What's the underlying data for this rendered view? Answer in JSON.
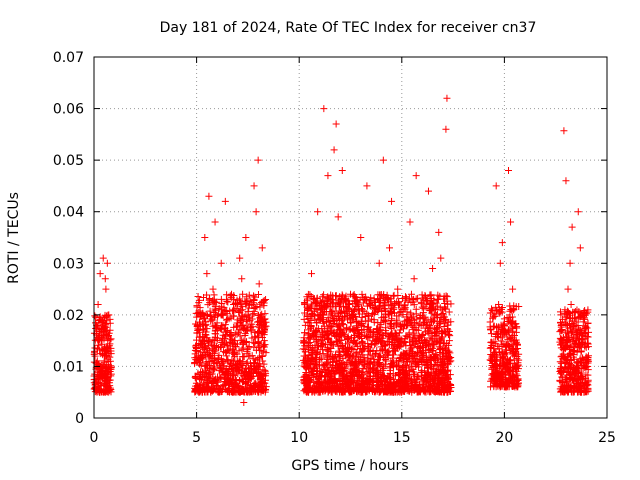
{
  "chart_data": {
    "type": "scatter",
    "title": "Day 181 of 2024, Rate Of TEC Index for receiver cn37",
    "xlabel": "GPS time / hours",
    "ylabel": "ROTI / TECUs",
    "xlim": [
      0,
      25
    ],
    "ylim": [
      0,
      0.07
    ],
    "xticks": [
      "0",
      "5",
      "10",
      "15",
      "20",
      "25"
    ],
    "yticks": [
      "0",
      "0.01",
      "0.02",
      "0.03",
      "0.04",
      "0.05",
      "0.06",
      "0.07"
    ],
    "grid": true,
    "marker": "+",
    "color": "#ff0000",
    "series": [
      {
        "x": [
          0.05,
          0.12,
          0.2,
          0.28,
          0.35,
          0.42,
          0.5,
          0.58,
          0.65,
          0.72,
          0.8,
          0.1,
          0.3,
          0.45,
          0.6,
          0.7,
          0.55,
          0.62,
          0.75,
          5.0,
          5.2,
          5.4,
          5.6,
          5.8,
          6.0,
          6.2,
          6.4,
          6.6,
          6.8,
          7.0,
          7.2,
          7.4,
          7.6,
          7.8,
          8.0,
          8.2,
          8.3,
          5.3,
          5.5,
          5.9,
          6.3,
          6.7,
          7.1,
          7.5,
          7.9,
          8.05,
          8.15,
          6.1,
          6.5,
          7.3,
          10.3,
          10.6,
          10.9,
          11.2,
          11.5,
          11.8,
          12.1,
          12.4,
          12.7,
          13.0,
          13.3,
          13.6,
          13.9,
          14.2,
          14.5,
          14.8,
          15.1,
          15.4,
          15.7,
          16.0,
          16.3,
          16.6,
          16.9,
          17.2,
          11.0,
          11.4,
          11.7,
          12.0,
          12.5,
          13.2,
          13.8,
          14.4,
          15.0,
          15.6,
          16.2,
          16.8,
          17.15,
          17.25,
          11.6,
          11.9,
          14.1,
          15.5,
          16.5,
          19.4,
          19.6,
          19.8,
          20.0,
          20.2,
          20.4,
          20.6,
          19.5,
          19.9,
          20.3,
          20.5,
          20.45,
          22.8,
          23.0,
          23.2,
          23.4,
          23.6,
          23.8,
          24.0,
          22.9,
          23.1,
          23.3,
          23.5,
          23.7,
          22.85,
          23.25
        ],
        "y": [
          0.012,
          0.018,
          0.022,
          0.01,
          0.015,
          0.008,
          0.013,
          0.025,
          0.03,
          0.02,
          0.011,
          0.006,
          0.028,
          0.031,
          0.016,
          0.009,
          0.027,
          0.012,
          0.014,
          0.013,
          0.02,
          0.035,
          0.043,
          0.025,
          0.015,
          0.03,
          0.042,
          0.01,
          0.022,
          0.018,
          0.027,
          0.035,
          0.012,
          0.045,
          0.05,
          0.033,
          0.015,
          0.009,
          0.028,
          0.038,
          0.011,
          0.024,
          0.031,
          0.008,
          0.04,
          0.026,
          0.019,
          0.005,
          0.017,
          0.003,
          0.012,
          0.028,
          0.04,
          0.06,
          0.018,
          0.057,
          0.048,
          0.022,
          0.015,
          0.035,
          0.045,
          0.013,
          0.03,
          0.019,
          0.042,
          0.025,
          0.01,
          0.038,
          0.047,
          0.016,
          0.044,
          0.02,
          0.031,
          0.062,
          0.009,
          0.047,
          0.052,
          0.014,
          0.024,
          0.011,
          0.021,
          0.033,
          0.006,
          0.027,
          0.012,
          0.036,
          0.056,
          0.018,
          0.008,
          0.039,
          0.05,
          0.014,
          0.029,
          0.012,
          0.045,
          0.03,
          0.018,
          0.048,
          0.025,
          0.01,
          0.02,
          0.034,
          0.038,
          0.015,
          0.008,
          0.012,
          0.046,
          0.03,
          0.018,
          0.04,
          0.02,
          0.01,
          0.0557,
          0.025,
          0.037,
          0.015,
          0.033,
          0.006,
          0.022
        ]
      }
    ],
    "cloud_bands": [
      {
        "x0": 0.0,
        "x1": 0.85,
        "y0": 0.005,
        "y1": 0.02,
        "n": 260
      },
      {
        "x0": 4.9,
        "x1": 8.4,
        "y0": 0.005,
        "y1": 0.024,
        "n": 900
      },
      {
        "x0": 10.2,
        "x1": 17.4,
        "y0": 0.005,
        "y1": 0.024,
        "n": 2200
      },
      {
        "x0": 19.3,
        "x1": 20.7,
        "y0": 0.006,
        "y1": 0.022,
        "n": 380
      },
      {
        "x0": 22.7,
        "x1": 24.1,
        "y0": 0.005,
        "y1": 0.021,
        "n": 420
      }
    ]
  }
}
